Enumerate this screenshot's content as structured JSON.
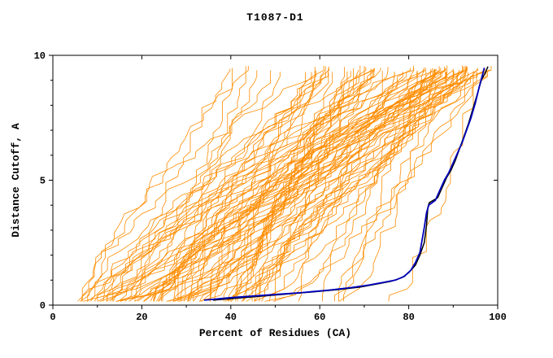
{
  "chart_data": {
    "type": "line",
    "title": "T1087-D1",
    "xlabel": "Percent of Residues (CA)",
    "ylabel": "Distance Cutoff, A",
    "xlim": [
      0,
      100
    ],
    "ylim": [
      0,
      10
    ],
    "xticks": [
      0,
      20,
      40,
      60,
      80,
      100
    ],
    "yticks": [
      0,
      5,
      10
    ],
    "x_minor_step": 10,
    "y_minor_step": 1,
    "grid": false,
    "legend": "none",
    "colors": {
      "ensemble": "#ff8c00",
      "highlight_blue": "#0000bb",
      "highlight_black": "#000000",
      "axis": "#000000",
      "background": "#ffffff"
    },
    "ensemble": {
      "name": "server-model-curves",
      "count": 92,
      "seed": 1087,
      "x_start_range": [
        5,
        48
      ],
      "y_range": [
        0.15,
        9.6
      ],
      "line_width": 0.8
    },
    "series": [
      {
        "name": "best-model-black",
        "color": "#000000",
        "width": 1.5,
        "points": [
          [
            36,
            0.2
          ],
          [
            43,
            0.3
          ],
          [
            51,
            0.42
          ],
          [
            58,
            0.52
          ],
          [
            64,
            0.62
          ],
          [
            69,
            0.72
          ],
          [
            73,
            0.85
          ],
          [
            76,
            0.95
          ],
          [
            78.5,
            1.1
          ],
          [
            80,
            1.3
          ],
          [
            81.5,
            1.6
          ],
          [
            82.5,
            2.0
          ],
          [
            83.5,
            2.5
          ],
          [
            84,
            3.2
          ],
          [
            84.3,
            3.9
          ],
          [
            84.6,
            4.1
          ],
          [
            86.5,
            4.3
          ],
          [
            87.5,
            4.7
          ],
          [
            88.5,
            5.1
          ],
          [
            89.5,
            5.4
          ],
          [
            90.5,
            5.8
          ],
          [
            91.5,
            6.3
          ],
          [
            92.5,
            6.8
          ],
          [
            93.5,
            7.3
          ],
          [
            94.5,
            7.9
          ],
          [
            95.5,
            8.5
          ],
          [
            96.3,
            9.0
          ],
          [
            97.2,
            9.3
          ],
          [
            97.8,
            9.55
          ]
        ]
      },
      {
        "name": "best-model-blue",
        "color": "#0000bb",
        "width": 1.8,
        "points": [
          [
            34,
            0.2
          ],
          [
            40,
            0.3
          ],
          [
            48,
            0.4
          ],
          [
            56,
            0.5
          ],
          [
            62,
            0.6
          ],
          [
            67,
            0.7
          ],
          [
            71,
            0.8
          ],
          [
            74,
            0.9
          ],
          [
            77,
            1.0
          ],
          [
            79,
            1.15
          ],
          [
            80.5,
            1.4
          ],
          [
            81.5,
            1.7
          ],
          [
            82.5,
            2.1
          ],
          [
            83,
            2.6
          ],
          [
            83.5,
            3.1
          ],
          [
            84,
            3.7
          ],
          [
            84.5,
            4.0
          ],
          [
            86,
            4.2
          ],
          [
            87,
            4.6
          ],
          [
            88,
            5.0
          ],
          [
            89,
            5.3
          ],
          [
            90,
            5.7
          ],
          [
            91,
            6.1
          ],
          [
            92,
            6.5
          ],
          [
            93,
            7.0
          ],
          [
            94,
            7.5
          ],
          [
            95,
            8.1
          ],
          [
            95.8,
            8.7
          ],
          [
            96.4,
            9.1
          ],
          [
            97,
            9.5
          ]
        ]
      }
    ]
  }
}
